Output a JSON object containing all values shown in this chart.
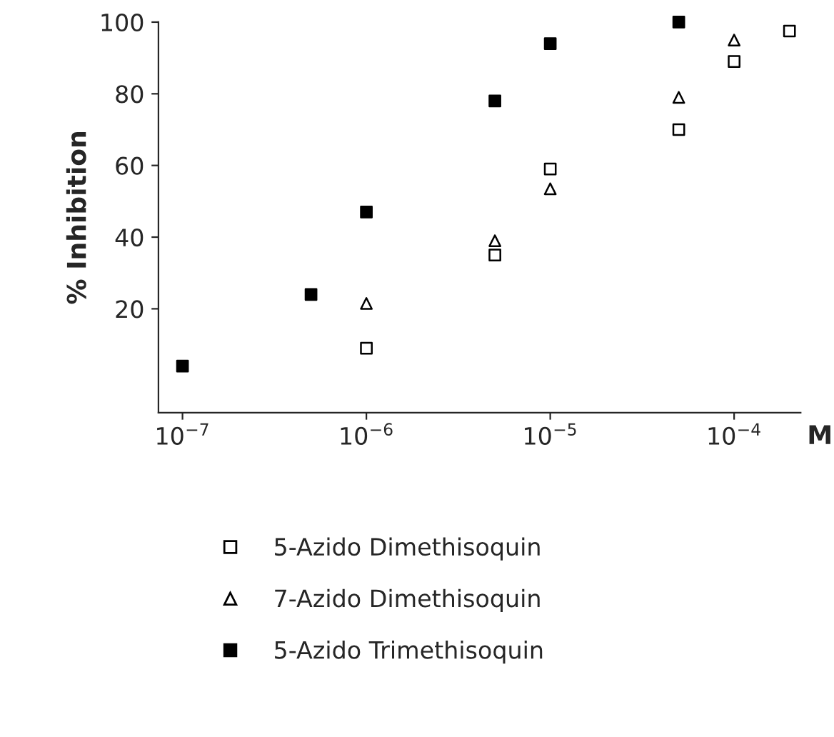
{
  "chart_data": {
    "type": "scatter",
    "xlabel": "M",
    "ylabel": "% Inhibition",
    "log": "x",
    "xlim": [
      7.4e-08,
      0.00023
    ],
    "xticks": [
      {
        "value": 1e-07,
        "label": "10$^{−7}$"
      },
      {
        "value": 1e-06,
        "label": "10$^{−6}$"
      },
      {
        "value": 1e-05,
        "label": "10$^{−5}$"
      },
      {
        "value": 0.0001,
        "label": "10$^{−4}$"
      }
    ],
    "ylim": [
      -9,
      100
    ],
    "yticks": [
      20,
      40,
      60,
      80,
      100
    ],
    "grid": false,
    "legend": "bottom",
    "series": [
      {
        "name": "5-Azido Dimethisoquin",
        "color": "#000000",
        "marker": "square",
        "x": [
          1e-06,
          5e-06,
          1e-05,
          5e-05,
          0.0001,
          0.0002
        ],
        "values": [
          9,
          35,
          59,
          70,
          89,
          97.5
        ]
      },
      {
        "name": "7-Azido Dimethisoquin",
        "color": "#000000",
        "marker": "triangle",
        "x": [
          1e-06,
          5e-06,
          1e-05,
          5e-05,
          0.0001
        ],
        "values": [
          21.5,
          39,
          53.5,
          79,
          95
        ]
      },
      {
        "name": "5-Azido Trimethisoquin",
        "color": "#000000",
        "marker": "square",
        "x": [
          1e-07,
          5e-07,
          1e-06,
          5e-06,
          1e-05,
          5e-05
        ],
        "values": [
          4,
          24,
          47,
          78,
          94,
          100
        ]
      }
    ]
  }
}
